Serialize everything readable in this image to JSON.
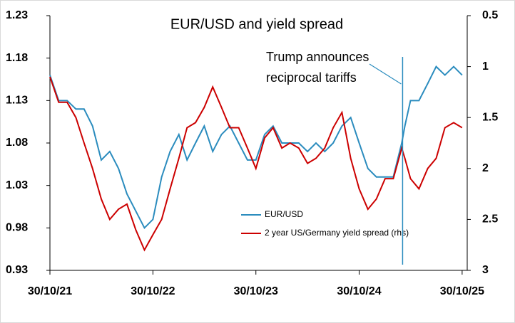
{
  "chart_data": {
    "type": "line",
    "title": "EUR/USD and yield spread",
    "x": [
      "30/10/21",
      "30/11/21",
      "30/12/21",
      "30/01/22",
      "28/02/22",
      "30/03/22",
      "30/04/22",
      "30/05/22",
      "30/06/22",
      "30/07/22",
      "30/08/22",
      "30/09/22",
      "30/10/22",
      "30/11/22",
      "30/12/22",
      "30/01/23",
      "28/02/23",
      "30/03/23",
      "30/04/23",
      "30/05/23",
      "30/06/23",
      "30/07/23",
      "30/08/23",
      "30/09/23",
      "30/10/23",
      "30/11/23",
      "30/12/23",
      "30/01/24",
      "28/02/24",
      "30/03/24",
      "30/04/24",
      "30/05/24",
      "30/06/24",
      "30/07/24",
      "30/08/24",
      "30/09/24",
      "30/10/24",
      "30/11/24",
      "30/12/24",
      "30/01/25",
      "28/02/25",
      "30/03/25",
      "10/04/25",
      "30/04/25",
      "30/05/25",
      "30/06/25",
      "30/07/25",
      "30/08/25",
      "30/09/25",
      "30/10/25"
    ],
    "series": [
      {
        "name": "EUR/USD",
        "color": "#2b8cbe",
        "values": [
          1.16,
          1.13,
          1.13,
          1.12,
          1.12,
          1.1,
          1.06,
          1.07,
          1.05,
          1.02,
          1.0,
          0.98,
          0.99,
          1.04,
          1.07,
          1.09,
          1.06,
          1.08,
          1.1,
          1.07,
          1.09,
          1.1,
          1.08,
          1.06,
          1.06,
          1.09,
          1.1,
          1.08,
          1.08,
          1.08,
          1.07,
          1.08,
          1.07,
          1.08,
          1.1,
          1.11,
          1.08,
          1.05,
          1.04,
          1.04,
          1.04,
          1.08,
          1.1,
          1.13,
          1.13,
          1.15,
          1.17,
          1.16,
          1.17,
          1.16
        ]
      },
      {
        "name": "2 year US/Germany yield spread (rhs)",
        "color": "#cc0000",
        "axis": "y2",
        "values": [
          1.1,
          1.35,
          1.35,
          1.5,
          1.75,
          2.0,
          2.3,
          2.5,
          2.4,
          2.35,
          2.6,
          2.8,
          2.65,
          2.5,
          2.2,
          1.9,
          1.6,
          1.55,
          1.4,
          1.2,
          1.4,
          1.6,
          1.6,
          1.8,
          2.0,
          1.7,
          1.6,
          1.8,
          1.75,
          1.8,
          1.95,
          1.9,
          1.8,
          1.6,
          1.45,
          1.9,
          2.2,
          2.4,
          2.3,
          2.1,
          2.1,
          1.8,
          1.9,
          2.1,
          2.2,
          2.0,
          1.9,
          1.6,
          1.55,
          1.6
        ]
      }
    ],
    "xlim": [
      "30/10/21",
      "17/11/25"
    ],
    "xticks": [
      "30/10/21",
      "30/10/22",
      "30/10/23",
      "30/10/24",
      "30/10/25"
    ],
    "ylim": [
      0.93,
      1.23
    ],
    "yticks": [
      0.93,
      0.98,
      1.03,
      1.08,
      1.13,
      1.18,
      1.23
    ],
    "y2lim": [
      3,
      0.5
    ],
    "y2ticks": [
      0.5,
      1,
      1.5,
      2,
      2.5,
      3
    ],
    "annotation": {
      "text_lines": [
        "Trump announces",
        "reciprocal tariffs"
      ],
      "x": "02/04/25"
    },
    "grid": false
  }
}
